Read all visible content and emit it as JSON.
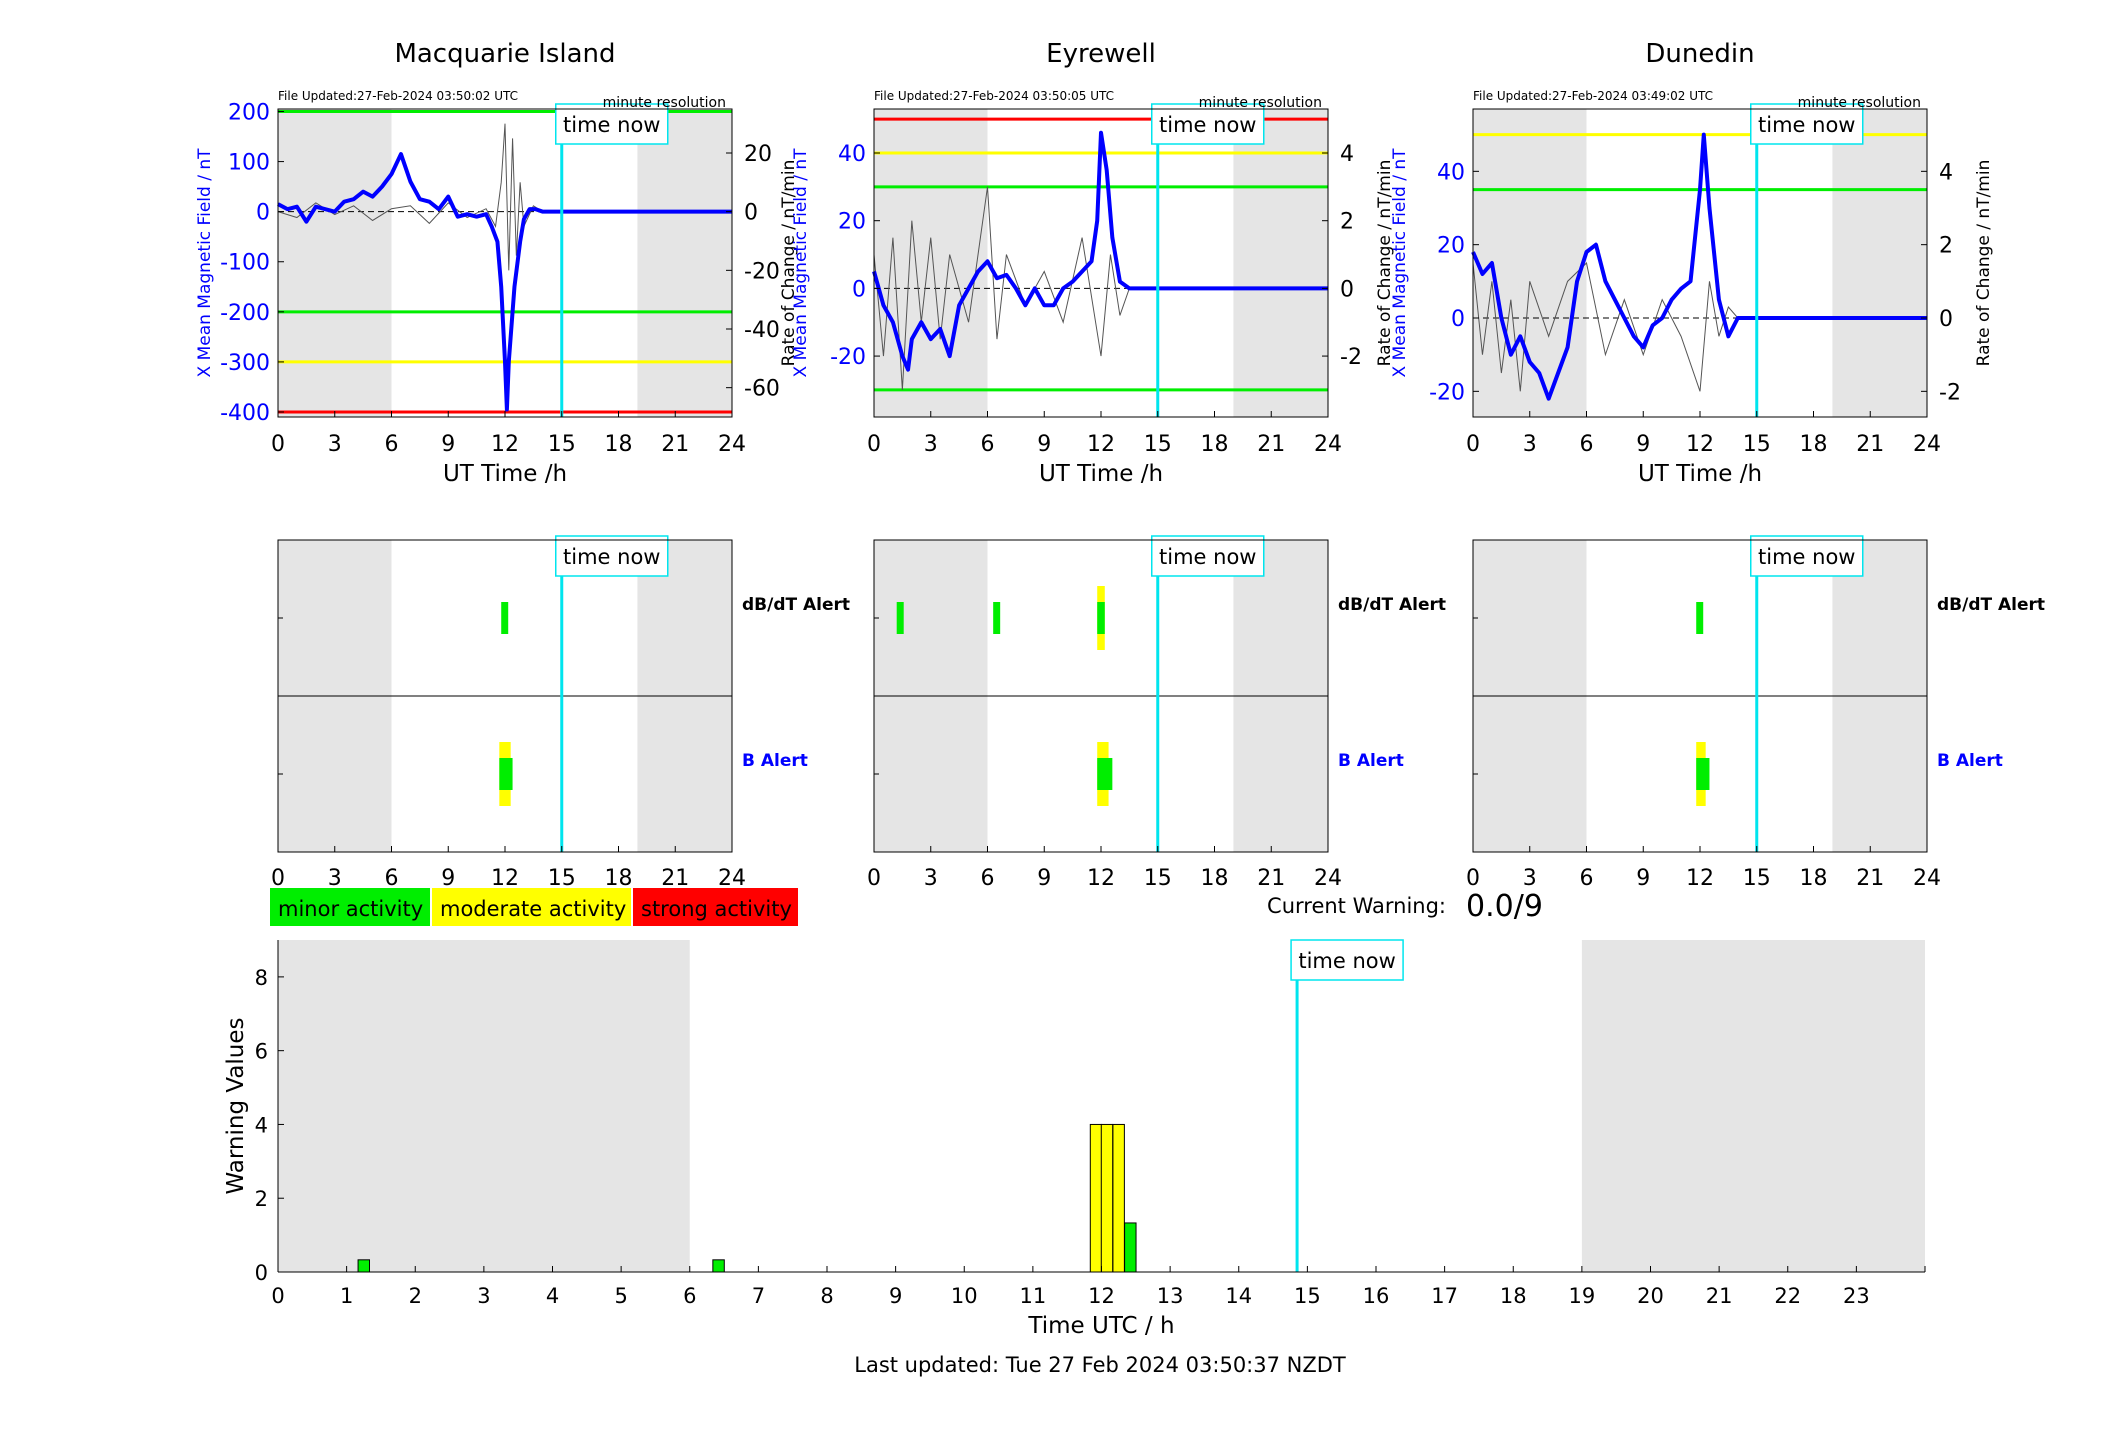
{
  "footer": {
    "last_updated": "Last updated: Tue 27 Feb 2024 03:50:37 NZDT"
  },
  "labels": {
    "time_now": "time now",
    "minute_resolution": "minute resolution",
    "ut_time": "UT Time /h",
    "dbdt_alert": "dB/dT Alert",
    "b_alert": "B Alert",
    "current_warning_label": "Current Warning:",
    "current_warning_value": "0.0/9"
  },
  "colors": {
    "field": "#0000ff",
    "rate": "#555555",
    "now": "#00e5ee",
    "night": "#e5e5e5",
    "green": "#00ee00",
    "yellow": "#ffff00",
    "red": "#ff0000"
  },
  "legend": [
    {
      "label": "minor activity",
      "color": "#00ee00"
    },
    {
      "label": "moderate activity",
      "color": "#ffff00"
    },
    {
      "label": "strong activity",
      "color": "#ff0000"
    }
  ],
  "chart_data": [
    {
      "type": "line",
      "title": "Macquarie Island",
      "file_updated": "File Updated:27-Feb-2024 03:50:02 UTC",
      "xlabel": "UT Time /h",
      "xlim": [
        0,
        24
      ],
      "xticks": [
        "0",
        "3",
        "6",
        "9",
        "12",
        "15",
        "18",
        "21",
        "24"
      ],
      "ylabel": "X Mean Magnetic Field / nT",
      "ylim": [
        -410,
        205
      ],
      "yticks": [
        200,
        100,
        0,
        -100,
        -200,
        -300,
        -400
      ],
      "y2label": "Rate of Change / nT/min",
      "y2lim": [
        -70,
        35
      ],
      "y2ticks": [
        20,
        0,
        -20,
        -40,
        -60
      ],
      "night": [
        [
          0,
          6
        ],
        [
          19,
          24
        ]
      ],
      "time_now": 15,
      "thresholds": [
        {
          "y": 200,
          "color": "#00ee00"
        },
        {
          "y": -200,
          "color": "#00ee00"
        },
        {
          "y": -300,
          "color": "#ffff00"
        },
        {
          "y": -400,
          "color": "#ff0000"
        }
      ],
      "series": [
        {
          "x": [
            0,
            0.5,
            1,
            1.5,
            2,
            2.5,
            3,
            3.5,
            4,
            4.5,
            5,
            5.5,
            6,
            6.5,
            7,
            7.5,
            8,
            8.5,
            9,
            9.5,
            10,
            10.5,
            11,
            11.3,
            11.6,
            11.8,
            12,
            12.1,
            12.2,
            12.5,
            12.8,
            13,
            13.3,
            13.6,
            14,
            14.5,
            15,
            24
          ],
          "y": [
            15,
            5,
            10,
            -20,
            10,
            5,
            0,
            20,
            25,
            40,
            30,
            50,
            75,
            115,
            60,
            25,
            20,
            5,
            30,
            -10,
            -5,
            -10,
            -5,
            -30,
            -60,
            -150,
            -300,
            -395,
            -300,
            -150,
            -60,
            -15,
            5,
            5,
            0,
            0,
            0,
            0
          ]
        }
      ],
      "rate_series": [
        {
          "x": [
            0,
            1,
            2,
            3,
            4,
            5,
            6,
            7,
            8,
            9,
            10,
            11,
            11.5,
            11.8,
            12,
            12.2,
            12.4,
            12.6,
            12.8,
            13,
            13.5,
            14,
            14.5,
            15,
            24
          ],
          "y": [
            0,
            -2,
            3,
            -1,
            2,
            -3,
            1,
            2,
            -4,
            3,
            -2,
            1,
            -5,
            10,
            30,
            -20,
            25,
            -15,
            10,
            -5,
            2,
            0,
            0,
            0,
            0
          ]
        }
      ]
    },
    {
      "type": "line",
      "title": "Eyrewell",
      "file_updated": "File Updated:27-Feb-2024 03:50:05 UTC",
      "xlabel": "UT Time /h",
      "xlim": [
        0,
        24
      ],
      "xticks": [
        "0",
        "3",
        "6",
        "9",
        "12",
        "15",
        "18",
        "21",
        "24"
      ],
      "ylabel": "X Mean Magnetic Field / nT",
      "ylim": [
        -38,
        53
      ],
      "yticks": [
        40,
        20,
        0,
        -20
      ],
      "y2label": "Rate of Change / nT/min",
      "y2lim": [
        -3.8,
        5.3
      ],
      "y2ticks": [
        4,
        2,
        0,
        -2
      ],
      "night": [
        [
          0,
          6
        ],
        [
          19,
          24
        ]
      ],
      "time_now": 15,
      "thresholds": [
        {
          "y": 50,
          "color": "#ff0000"
        },
        {
          "y": 40,
          "color": "#ffff00"
        },
        {
          "y": 30,
          "color": "#00ee00"
        },
        {
          "y": -30,
          "color": "#00ee00"
        }
      ],
      "series": [
        {
          "x": [
            0,
            0.5,
            1,
            1.5,
            1.8,
            2,
            2.5,
            3,
            3.5,
            4,
            4.5,
            5,
            5.5,
            6,
            6.5,
            7,
            7.5,
            8,
            8.5,
            9,
            9.5,
            10,
            10.5,
            11,
            11.5,
            11.8,
            12,
            12.3,
            12.6,
            13,
            13.5,
            14,
            15,
            24
          ],
          "y": [
            5,
            -5,
            -10,
            -20,
            -24,
            -15,
            -10,
            -15,
            -12,
            -20,
            -5,
            0,
            5,
            8,
            3,
            4,
            0,
            -5,
            0,
            -5,
            -5,
            0,
            2,
            5,
            8,
            20,
            46,
            35,
            15,
            2,
            0,
            0,
            0,
            0
          ]
        }
      ],
      "rate_series": [
        {
          "x": [
            0,
            0.5,
            1,
            1.5,
            2,
            2.5,
            3,
            3.5,
            4,
            5,
            6,
            6.5,
            7,
            8,
            9,
            10,
            11,
            12,
            12.5,
            13,
            13.5,
            14,
            15,
            24
          ],
          "y": [
            1,
            -2,
            1.5,
            -3,
            2,
            -1,
            1.5,
            -1.5,
            1,
            -1,
            3,
            -1.5,
            1,
            -0.5,
            0.5,
            -1,
            1.5,
            -2,
            1,
            -0.8,
            0,
            0,
            0,
            0
          ]
        }
      ]
    },
    {
      "type": "line",
      "title": "Dunedin",
      "file_updated": "File Updated:27-Feb-2024 03:49:02 UTC",
      "xlabel": "UT Time /h",
      "xlim": [
        0,
        24
      ],
      "xticks": [
        "0",
        "3",
        "6",
        "9",
        "12",
        "15",
        "18",
        "21",
        "24"
      ],
      "ylabel": "X Mean Magnetic Field / nT",
      "ylim": [
        -27,
        57
      ],
      "yticks": [
        40,
        20,
        0,
        -20
      ],
      "y2label": "Rate of Change / nT/min",
      "y2lim": [
        -2.7,
        5.7
      ],
      "y2ticks": [
        4,
        2,
        0,
        -2
      ],
      "night": [
        [
          0,
          6
        ],
        [
          19,
          24
        ]
      ],
      "time_now": 15,
      "thresholds": [
        {
          "y": 50,
          "color": "#ffff00"
        },
        {
          "y": 35,
          "color": "#00ee00"
        }
      ],
      "series": [
        {
          "x": [
            0,
            0.5,
            1,
            1.5,
            2,
            2.5,
            3,
            3.5,
            4,
            4.5,
            5,
            5.5,
            6,
            6.5,
            7,
            7.5,
            8,
            8.5,
            9,
            9.5,
            10,
            10.5,
            11,
            11.5,
            12,
            12.2,
            12.5,
            13,
            13.5,
            14,
            15,
            24
          ],
          "y": [
            18,
            12,
            15,
            0,
            -10,
            -5,
            -12,
            -15,
            -22,
            -15,
            -8,
            10,
            18,
            20,
            10,
            5,
            0,
            -5,
            -8,
            -2,
            0,
            5,
            8,
            10,
            35,
            50,
            30,
            5,
            -5,
            0,
            0,
            0
          ]
        }
      ],
      "rate_series": [
        {
          "x": [
            0,
            0.5,
            1,
            1.5,
            2,
            2.5,
            3,
            4,
            5,
            6,
            7,
            8,
            9,
            10,
            11,
            12,
            12.5,
            13,
            13.5,
            14,
            15,
            24
          ],
          "y": [
            1.5,
            -1,
            1,
            -1.5,
            0.5,
            -2,
            1,
            -0.5,
            1,
            1.5,
            -1,
            0.5,
            -1,
            0.5,
            -0.5,
            -2,
            1,
            -0.5,
            0.3,
            0,
            0,
            0
          ]
        }
      ]
    },
    {
      "type": "bar",
      "title": "",
      "panel": "alerts-macquarie",
      "xlim": [
        0,
        24
      ],
      "xticks": [
        "0",
        "3",
        "6",
        "9",
        "12",
        "15",
        "18",
        "21",
        "24"
      ],
      "night": [
        [
          0,
          6
        ],
        [
          19,
          24
        ]
      ],
      "time_now": 15,
      "rows": [
        {
          "name": "dB/dT Alert",
          "events": [
            {
              "x": [
                11.8,
                12.1
              ],
              "color": "#00ee00",
              "level": "minor"
            }
          ]
        },
        {
          "name": "B Alert",
          "events": [
            {
              "x": [
                11.7,
                12.3
              ],
              "color": "#ffff00",
              "level": "moderate"
            },
            {
              "x": [
                11.7,
                12.4
              ],
              "color": "#00ee00",
              "level": "minor"
            }
          ]
        }
      ]
    },
    {
      "type": "bar",
      "title": "",
      "panel": "alerts-eyrewell",
      "xlim": [
        0,
        24
      ],
      "xticks": [
        "0",
        "3",
        "6",
        "9",
        "12",
        "15",
        "18",
        "21",
        "24"
      ],
      "night": [
        [
          0,
          6
        ],
        [
          19,
          24
        ]
      ],
      "time_now": 15,
      "rows": [
        {
          "name": "dB/dT Alert",
          "events": [
            {
              "x": [
                1.2,
                1.5
              ],
              "color": "#00ee00",
              "level": "minor"
            },
            {
              "x": [
                6.3,
                6.6
              ],
              "color": "#00ee00",
              "level": "minor"
            },
            {
              "x": [
                11.8,
                12.2
              ],
              "color": "#ffff00",
              "level": "moderate"
            },
            {
              "x": [
                11.8,
                12.2
              ],
              "color": "#00ee00",
              "level": "minor"
            }
          ]
        },
        {
          "name": "B Alert",
          "events": [
            {
              "x": [
                11.8,
                12.4
              ],
              "color": "#ffff00",
              "level": "moderate"
            },
            {
              "x": [
                11.8,
                12.6
              ],
              "color": "#00ee00",
              "level": "minor"
            }
          ]
        }
      ]
    },
    {
      "type": "bar",
      "title": "",
      "panel": "alerts-dunedin",
      "xlim": [
        0,
        24
      ],
      "xticks": [
        "0",
        "3",
        "6",
        "9",
        "12",
        "15",
        "18",
        "21",
        "24"
      ],
      "night": [
        [
          0,
          6
        ],
        [
          19,
          24
        ]
      ],
      "time_now": 15,
      "rows": [
        {
          "name": "dB/dT Alert",
          "events": [
            {
              "x": [
                11.8,
                12.1
              ],
              "color": "#00ee00",
              "level": "minor"
            }
          ]
        },
        {
          "name": "B Alert",
          "events": [
            {
              "x": [
                11.8,
                12.3
              ],
              "color": "#ffff00",
              "level": "moderate"
            },
            {
              "x": [
                11.8,
                12.5
              ],
              "color": "#00ee00",
              "level": "minor"
            }
          ]
        }
      ]
    },
    {
      "type": "bar",
      "title": "",
      "panel": "warning-values",
      "xlabel": "Time UTC / h",
      "ylabel": "Warning Values",
      "xlim": [
        0,
        24
      ],
      "ylim": [
        0,
        9
      ],
      "xticks": [
        "0",
        "1",
        "2",
        "3",
        "4",
        "5",
        "6",
        "7",
        "8",
        "9",
        "10",
        "11",
        "12",
        "13",
        "14",
        "15",
        "16",
        "17",
        "18",
        "19",
        "20",
        "21",
        "22",
        "23"
      ],
      "yticks": [
        0,
        2,
        4,
        6,
        8
      ],
      "night": [
        [
          0,
          6
        ],
        [
          19,
          24
        ]
      ],
      "time_now": 14.85,
      "bars": [
        {
          "x": 1.25,
          "value": 0.33,
          "color": "#00ee00"
        },
        {
          "x": 6.42,
          "value": 0.33,
          "color": "#00ee00"
        },
        {
          "x": 11.92,
          "value": 4,
          "color": "#ffff00"
        },
        {
          "x": 12.08,
          "value": 4,
          "color": "#ffff00"
        },
        {
          "x": 12.25,
          "value": 4,
          "color": "#ffff00"
        },
        {
          "x": 12.42,
          "value": 1.33,
          "color": "#00ee00"
        }
      ]
    }
  ]
}
